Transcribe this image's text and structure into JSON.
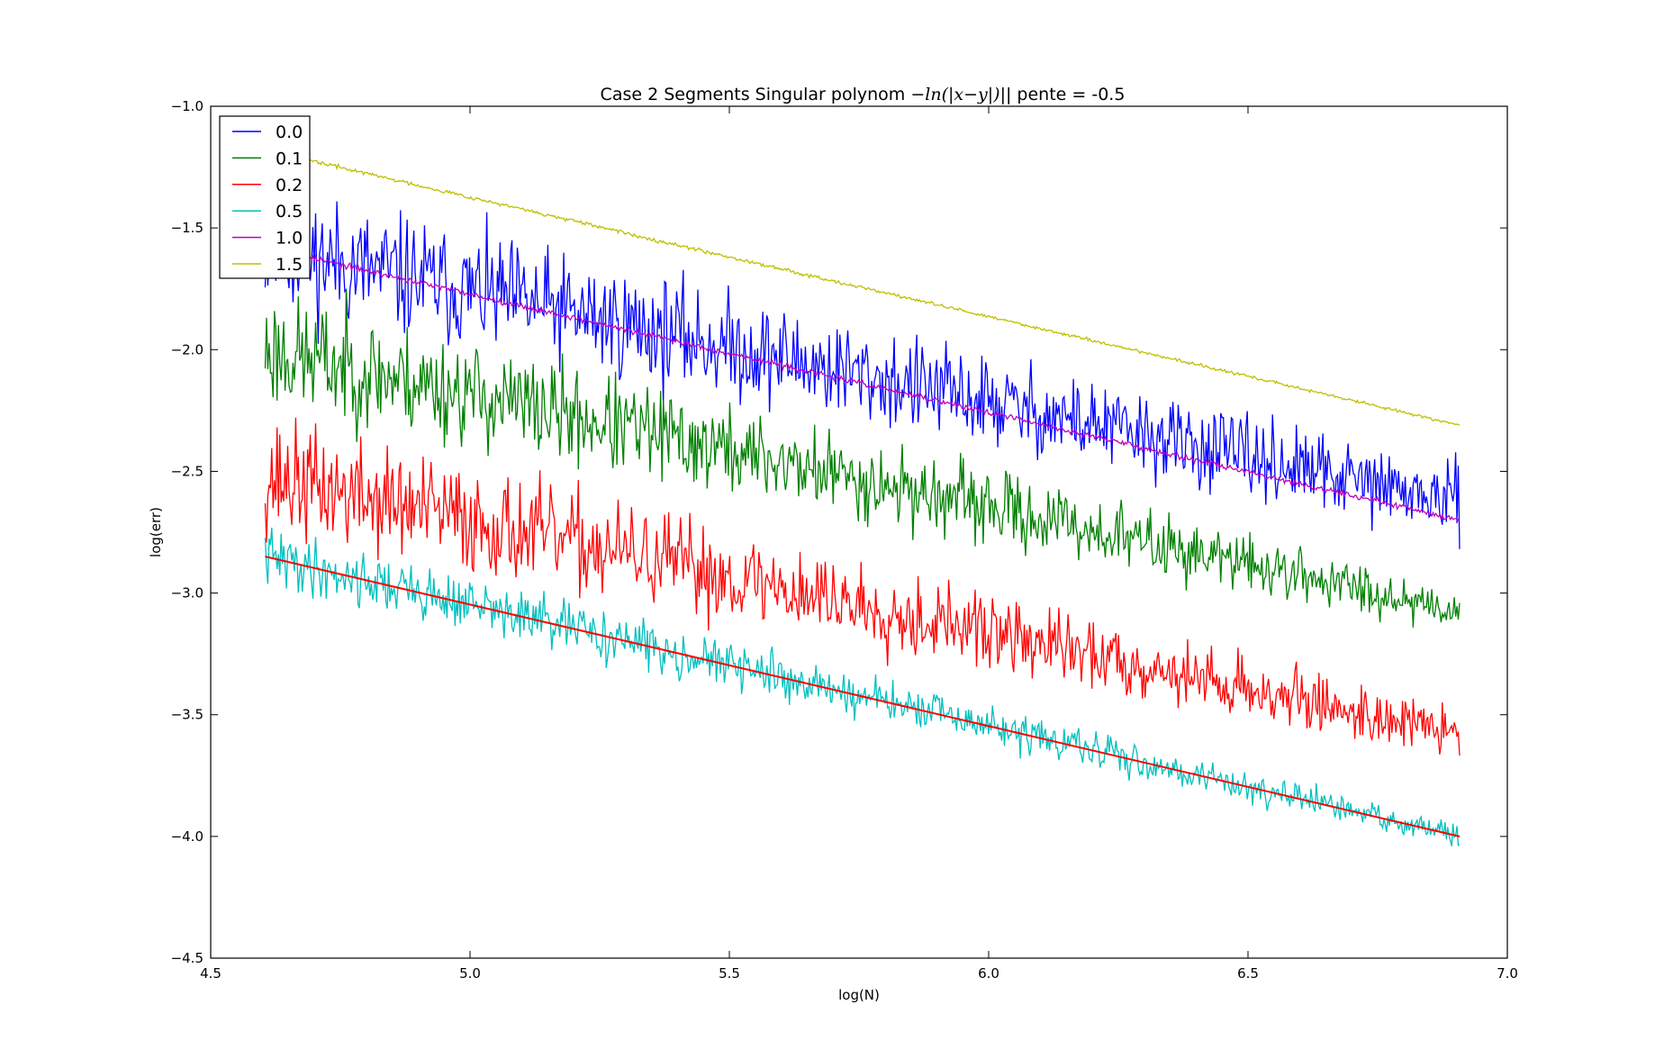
{
  "chart_data": {
    "type": "line",
    "title": {
      "prefix": "Case 2 Segments Singular polynom ",
      "math": "−ln(|x−y|)",
      "suffix": "|| pente = -0.5"
    },
    "xlabel": "log(N)",
    "ylabel": "log(err)",
    "xlim": [
      4.5,
      7.0
    ],
    "ylim": [
      -4.5,
      -1.0
    ],
    "xticks": [
      4.5,
      5.0,
      5.5,
      6.0,
      6.5,
      7.0
    ],
    "yticks": [
      -4.5,
      -4.0,
      -3.5,
      -3.0,
      -2.5,
      -2.0,
      -1.5,
      -1.0
    ],
    "xtick_labels": [
      "4.5",
      "5.0",
      "5.5",
      "6.0",
      "6.5",
      "7.0"
    ],
    "ytick_labels": [
      "−4.5",
      "−4.0",
      "−3.5",
      "−3.0",
      "−2.5",
      "−2.0",
      "−1.5",
      "−1.0"
    ],
    "x_range": [
      4.605,
      6.908
    ],
    "grid": false,
    "legend_position": "top-left",
    "series": [
      {
        "name": "0.0",
        "color": "#0000ff",
        "start": -1.58,
        "end": -2.63,
        "noise": 0.13,
        "noise_end": 0.07,
        "seed": 11
      },
      {
        "name": "0.1",
        "color": "#008000",
        "start": -2.0,
        "end": -3.07,
        "noise": 0.12,
        "noise_end": 0.045,
        "seed": 23
      },
      {
        "name": "0.2",
        "color": "#ff0000",
        "start": -2.52,
        "end": -3.58,
        "noise": 0.12,
        "noise_end": 0.05,
        "seed": 37
      },
      {
        "name": "0.5",
        "color": "#00bfbf",
        "start": -2.85,
        "end": -4.0,
        "noise": 0.06,
        "noise_end": 0.025,
        "seed": 41
      },
      {
        "name": "1.0",
        "color": "#bf00bf",
        "start": -1.58,
        "end": -2.7,
        "noise": 0.006,
        "noise_end": 0.006,
        "seed": 53
      },
      {
        "name": "1.5",
        "color": "#bfbf00",
        "start": -1.18,
        "end": -2.31,
        "noise": 0.004,
        "noise_end": 0.003,
        "seed": 67
      }
    ],
    "reference_line": {
      "color": "#ff0000",
      "x": [
        4.605,
        6.908
      ],
      "y": [
        -2.85,
        -4.0
      ]
    }
  }
}
